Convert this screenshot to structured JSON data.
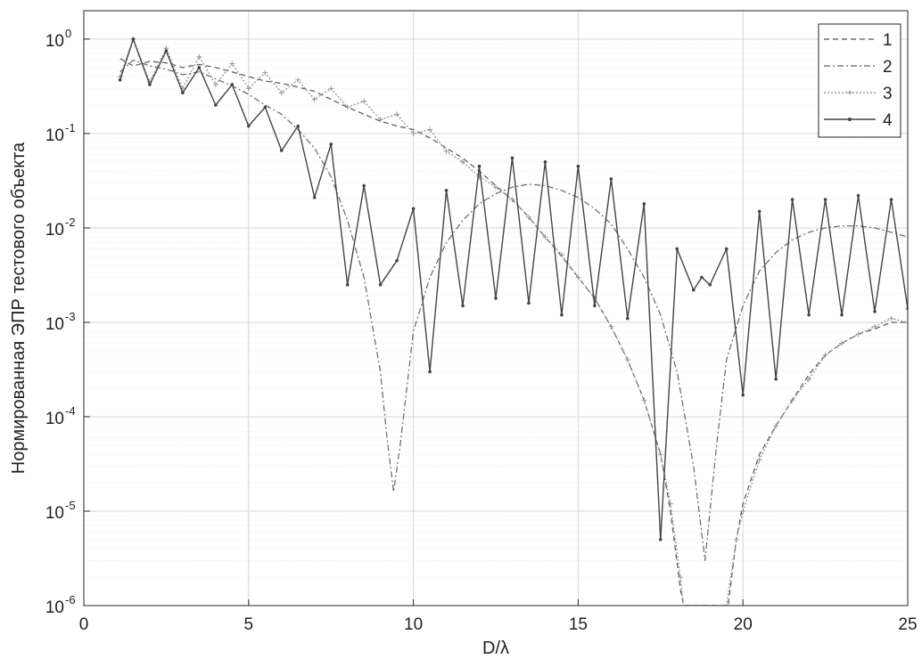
{
  "chart_data": {
    "type": "line",
    "xlabel": "D/λ",
    "ylabel": "Нормированная ЭПР тестового объекта",
    "xlim": [
      0,
      25
    ],
    "ylim": [
      1e-06,
      2
    ],
    "yscale": "log",
    "grid": true,
    "xticks": [
      "0",
      "5",
      "10",
      "15",
      "20",
      "25"
    ],
    "yticks": [
      {
        "base": "10",
        "exp": "-6"
      },
      {
        "base": "10",
        "exp": "-5"
      },
      {
        "base": "10",
        "exp": "-4"
      },
      {
        "base": "10",
        "exp": "-3"
      },
      {
        "base": "10",
        "exp": "-2"
      },
      {
        "base": "10",
        "exp": "-1"
      },
      {
        "base": "10",
        "exp": "0"
      }
    ],
    "legend": {
      "placement": "top-right"
    },
    "series": [
      {
        "name": "1",
        "style": "dashed",
        "color": "#555555",
        "points": [
          [
            1.1,
            0.62
          ],
          [
            1.5,
            0.52
          ],
          [
            2,
            0.58
          ],
          [
            2.5,
            0.56
          ],
          [
            3,
            0.5
          ],
          [
            3.5,
            0.54
          ],
          [
            4,
            0.5
          ],
          [
            4.5,
            0.45
          ],
          [
            5,
            0.4
          ],
          [
            5.5,
            0.36
          ],
          [
            6,
            0.34
          ],
          [
            6.5,
            0.31
          ],
          [
            7,
            0.28
          ],
          [
            7.5,
            0.23
          ],
          [
            8,
            0.19
          ],
          [
            8.5,
            0.16
          ],
          [
            9,
            0.135
          ],
          [
            9.5,
            0.12
          ],
          [
            10,
            0.11
          ],
          [
            10.5,
            0.09
          ],
          [
            11,
            0.07
          ],
          [
            11.5,
            0.055
          ],
          [
            12,
            0.04
          ],
          [
            12.5,
            0.028
          ],
          [
            13,
            0.02
          ],
          [
            13.5,
            0.013
          ],
          [
            14,
            0.008
          ],
          [
            14.5,
            0.005
          ],
          [
            15,
            0.003
          ],
          [
            15.5,
            0.0018
          ],
          [
            16,
            0.0009
          ],
          [
            16.5,
            0.0004
          ],
          [
            17,
            0.00015
          ],
          [
            17.5,
            4e-05
          ],
          [
            17.8,
            1e-05
          ],
          [
            18.1,
            1.5e-06
          ],
          [
            18.2,
            1e-06
          ],
          [
            19.55,
            1e-06
          ],
          [
            19.8,
            5e-06
          ],
          [
            20,
            1.2e-05
          ],
          [
            20.5,
            4e-05
          ],
          [
            21,
            8e-05
          ],
          [
            21.5,
            0.00015
          ],
          [
            22,
            0.00028
          ],
          [
            22.5,
            0.00045
          ],
          [
            23,
            0.0006
          ],
          [
            23.5,
            0.00075
          ],
          [
            24,
            0.00085
          ],
          [
            24.5,
            0.001
          ],
          [
            25,
            0.001
          ]
        ]
      },
      {
        "name": "2",
        "style": "dashdot",
        "color": "#666666",
        "points": [
          [
            1.1,
            0.45
          ],
          [
            1.5,
            0.6
          ],
          [
            2,
            0.52
          ],
          [
            2.5,
            0.48
          ],
          [
            3,
            0.42
          ],
          [
            3.5,
            0.45
          ],
          [
            4,
            0.38
          ],
          [
            4.5,
            0.32
          ],
          [
            5,
            0.26
          ],
          [
            5.5,
            0.2
          ],
          [
            6,
            0.16
          ],
          [
            6.5,
            0.11
          ],
          [
            7,
            0.07
          ],
          [
            7.5,
            0.035
          ],
          [
            8,
            0.012
          ],
          [
            8.5,
            0.003
          ],
          [
            9,
            0.0003
          ],
          [
            9.2,
            6e-05
          ],
          [
            9.4,
            1.6e-05
          ],
          [
            9.6,
            5e-05
          ],
          [
            10,
            0.0008
          ],
          [
            10.5,
            0.003
          ],
          [
            11,
            0.007
          ],
          [
            11.5,
            0.012
          ],
          [
            12,
            0.018
          ],
          [
            12.5,
            0.023
          ],
          [
            13,
            0.027
          ],
          [
            13.5,
            0.029
          ],
          [
            14,
            0.028
          ],
          [
            14.5,
            0.025
          ],
          [
            15,
            0.021
          ],
          [
            15.5,
            0.016
          ],
          [
            16,
            0.011
          ],
          [
            16.5,
            0.006
          ],
          [
            17,
            0.003
          ],
          [
            17.5,
            0.0012
          ],
          [
            18,
            0.0003
          ],
          [
            18.5,
            3e-05
          ],
          [
            18.85,
            3e-06
          ],
          [
            19.2,
            5e-05
          ],
          [
            19.5,
            0.0004
          ],
          [
            20,
            0.0015
          ],
          [
            20.5,
            0.0035
          ],
          [
            21,
            0.0055
          ],
          [
            21.5,
            0.0075
          ],
          [
            22,
            0.009
          ],
          [
            22.5,
            0.01
          ],
          [
            23,
            0.0105
          ],
          [
            23.5,
            0.0105
          ],
          [
            24,
            0.01
          ],
          [
            24.5,
            0.009
          ],
          [
            25,
            0.008
          ]
        ]
      },
      {
        "name": "3",
        "style": "dotted",
        "color": "#9a9a9a",
        "points": [
          [
            1.1,
            0.4
          ],
          [
            1.5,
            1.0
          ],
          [
            2,
            0.35
          ],
          [
            2.5,
            0.8
          ],
          [
            3,
            0.3
          ],
          [
            3.5,
            0.65
          ],
          [
            4,
            0.33
          ],
          [
            4.5,
            0.55
          ],
          [
            5,
            0.3
          ],
          [
            5.5,
            0.44
          ],
          [
            6,
            0.27
          ],
          [
            6.5,
            0.37
          ],
          [
            7,
            0.23
          ],
          [
            7.5,
            0.3
          ],
          [
            8,
            0.19
          ],
          [
            8.5,
            0.22
          ],
          [
            9,
            0.14
          ],
          [
            9.5,
            0.16
          ],
          [
            10,
            0.1
          ],
          [
            10.5,
            0.11
          ],
          [
            11,
            0.065
          ],
          [
            11.5,
            0.05
          ],
          [
            12,
            0.035
          ],
          [
            12.5,
            0.027
          ],
          [
            13,
            0.02
          ],
          [
            13.5,
            0.013
          ],
          [
            14,
            0.008
          ],
          [
            14.5,
            0.0052
          ],
          [
            15,
            0.003
          ],
          [
            15.5,
            0.0018
          ],
          [
            16,
            0.0009
          ],
          [
            16.5,
            0.0004
          ],
          [
            17,
            0.00015
          ],
          [
            17.5,
            4e-05
          ],
          [
            17.8,
            1.2e-05
          ],
          [
            18.1,
            2e-06
          ],
          [
            18.2,
            1e-06
          ],
          [
            19.5,
            1e-06
          ],
          [
            19.8,
            5e-06
          ],
          [
            20,
            1e-05
          ],
          [
            20.5,
            3.5e-05
          ],
          [
            21,
            8e-05
          ],
          [
            21.5,
            0.00015
          ],
          [
            22,
            0.00025
          ],
          [
            22.5,
            0.00045
          ],
          [
            23,
            0.0006
          ],
          [
            23.5,
            0.00075
          ],
          [
            24,
            0.0009
          ],
          [
            24.5,
            0.0011
          ],
          [
            25,
            0.001
          ]
        ]
      },
      {
        "name": "4",
        "style": "solid-markers",
        "color": "#444444",
        "points": [
          [
            1.1,
            0.37
          ],
          [
            1.5,
            1.0
          ],
          [
            2,
            0.33
          ],
          [
            2.5,
            0.75
          ],
          [
            3,
            0.27
          ],
          [
            3.5,
            0.5
          ],
          [
            4,
            0.2
          ],
          [
            4.5,
            0.33
          ],
          [
            5,
            0.12
          ],
          [
            5.5,
            0.19
          ],
          [
            6,
            0.066
          ],
          [
            6.5,
            0.12
          ],
          [
            7,
            0.021
          ],
          [
            7.5,
            0.077
          ],
          [
            8,
            0.0025
          ],
          [
            8.5,
            0.028
          ],
          [
            9,
            0.0025
          ],
          [
            9.5,
            0.0045
          ],
          [
            10,
            0.016
          ],
          [
            10.5,
            0.0003
          ],
          [
            11,
            0.025
          ],
          [
            11.5,
            0.0015
          ],
          [
            12,
            0.045
          ],
          [
            12.5,
            0.0018
          ],
          [
            13,
            0.055
          ],
          [
            13.5,
            0.0016
          ],
          [
            14,
            0.05
          ],
          [
            14.5,
            0.0012
          ],
          [
            15,
            0.045
          ],
          [
            15.5,
            0.0015
          ],
          [
            16,
            0.033
          ],
          [
            16.5,
            0.0011
          ],
          [
            17,
            0.018
          ],
          [
            17.5,
            5e-06
          ],
          [
            18,
            0.006
          ],
          [
            18.5,
            0.0022
          ],
          [
            18.75,
            0.003
          ],
          [
            19,
            0.0025
          ],
          [
            19.5,
            0.006
          ],
          [
            20,
            0.00017
          ],
          [
            20.5,
            0.015
          ],
          [
            21,
            0.00025
          ],
          [
            21.5,
            0.02
          ],
          [
            22,
            0.0012
          ],
          [
            22.5,
            0.02
          ],
          [
            23,
            0.0012
          ],
          [
            23.5,
            0.022
          ],
          [
            24,
            0.0013
          ],
          [
            24.5,
            0.02
          ],
          [
            25,
            0.0014
          ]
        ]
      }
    ]
  }
}
